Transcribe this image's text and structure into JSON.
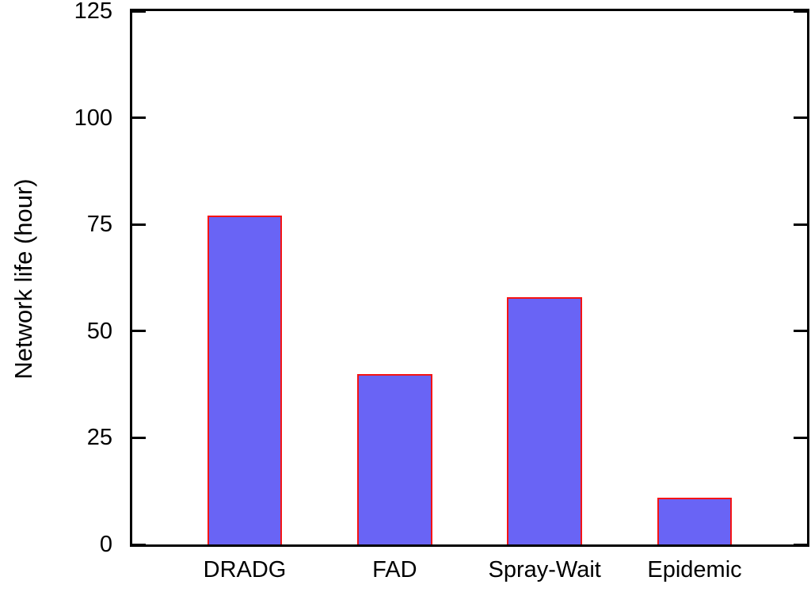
{
  "chart_data": {
    "type": "bar",
    "categories": [
      "DRADG",
      "FAD",
      "Spray-Wait",
      "Epidemic"
    ],
    "values": [
      77,
      40,
      58,
      11
    ],
    "title": "",
    "xlabel": "",
    "ylabel": "Network life (hour)",
    "ylim": [
      0,
      125
    ],
    "yticks": [
      0,
      25,
      50,
      75,
      100,
      125
    ],
    "legend_position": "none",
    "grid": false,
    "colors": {
      "bar_fill": "#6964f5",
      "bar_border": "#f51414",
      "axis": "#000000",
      "text": "#000000",
      "background": "#ffffff"
    }
  }
}
